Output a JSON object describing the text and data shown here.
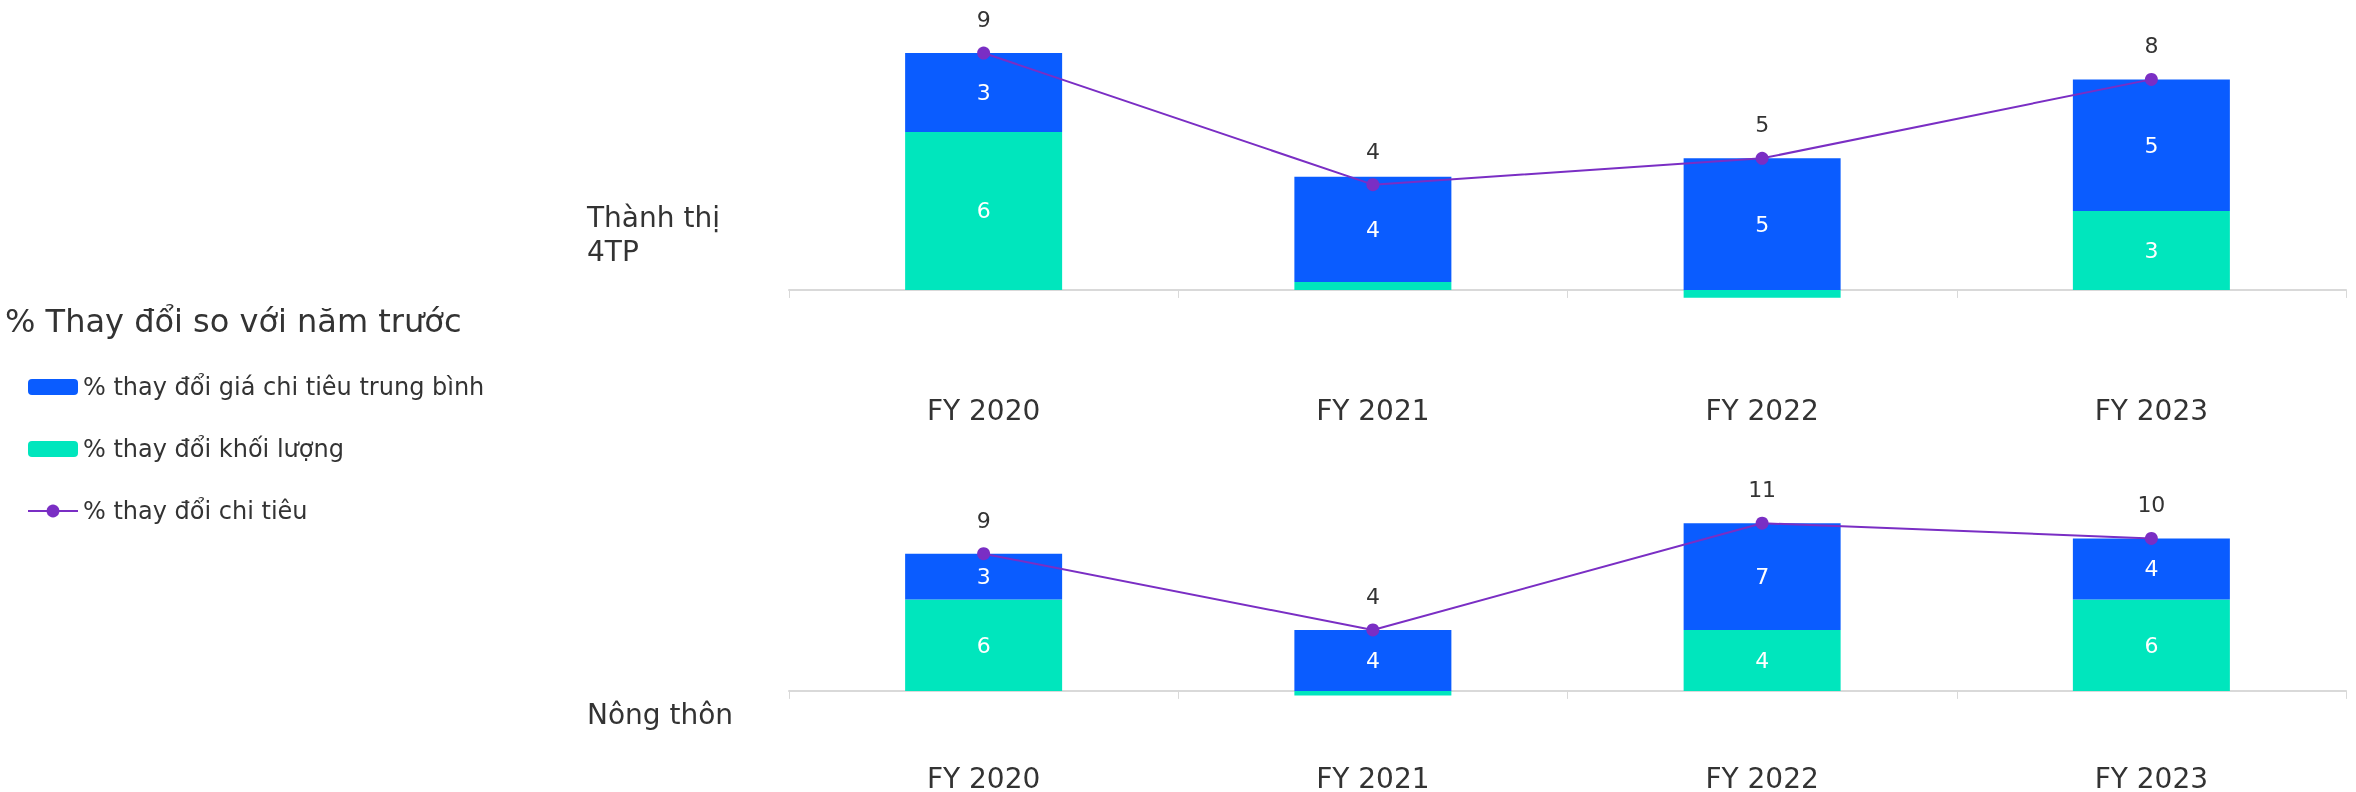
{
  "chart_data": [
    {
      "type": "bar",
      "title": "Thành thị\n4TP",
      "legend_title": "% Thay đổi so với năm trước",
      "legend": "left",
      "stacked": true,
      "categories": [
        "FY 2020",
        "FY 2021",
        "FY 2022",
        "FY 2023"
      ],
      "grid": false,
      "marker": "circle",
      "series": [
        {
          "name": "% thay đổi khối lượng",
          "color": "#00e6bd",
          "values": [
            6,
            0.3,
            -0.3,
            3
          ],
          "value_labels": [
            "6",
            null,
            null,
            "3"
          ]
        },
        {
          "name": "% thay đổi giá chi tiêu trung bình",
          "color": "#0a5cff",
          "values": [
            3,
            4,
            5,
            5
          ],
          "value_labels": [
            "3",
            "4",
            "5",
            "5"
          ]
        },
        {
          "name": "% thay đổi chi tiêu",
          "type": "line",
          "color": "#7a2ec4",
          "values": [
            9,
            4,
            5,
            8
          ],
          "value_labels": [
            "9",
            "4",
            "5",
            "8"
          ]
        }
      ]
    },
    {
      "type": "bar",
      "title": "Nông thôn",
      "stacked": true,
      "categories": [
        "FY 2020",
        "FY 2021",
        "FY 2022",
        "FY 2023"
      ],
      "grid": false,
      "marker": "circle",
      "series": [
        {
          "color": "#00e6bd",
          "values": [
            6,
            -0.3,
            4,
            6
          ],
          "value_labels": [
            "6",
            null,
            "4",
            "6"
          ]
        },
        {
          "color": "#0a5cff",
          "values": [
            3,
            4,
            7,
            4
          ],
          "value_labels": [
            "3",
            "4",
            "7",
            "4"
          ]
        },
        {
          "type": "line",
          "color": "#7a2ec4",
          "values": [
            9,
            4,
            11,
            10
          ],
          "value_labels": [
            "9",
            "4",
            "11",
            "10"
          ]
        }
      ]
    }
  ]
}
